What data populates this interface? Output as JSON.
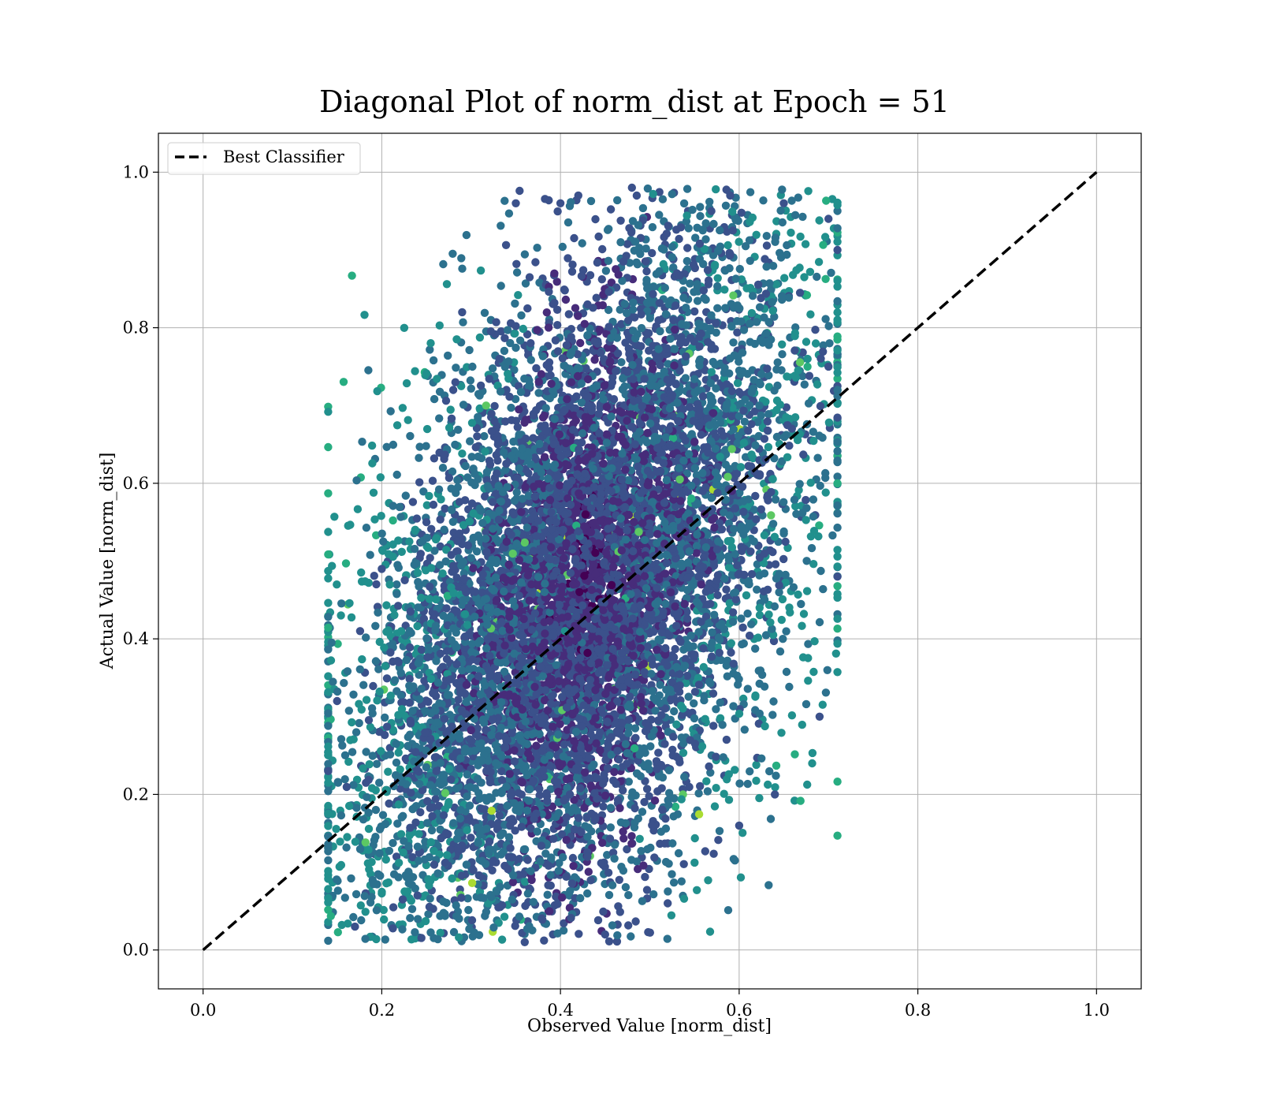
{
  "chart_data": {
    "type": "scatter",
    "title": "Diagonal Plot of norm_dist at Epoch = 51",
    "xlabel": "Observed Value [norm_dist]",
    "ylabel": "Actual Value [norm_dist]",
    "xlim": [
      -0.05,
      1.05
    ],
    "ylim": [
      -0.05,
      1.05
    ],
    "xticks": [
      "0.0",
      "0.2",
      "0.4",
      "0.6",
      "0.8",
      "1.0"
    ],
    "yticks": [
      "0.0",
      "0.2",
      "0.4",
      "0.6",
      "0.8",
      "1.0"
    ],
    "xtick_values": [
      0.0,
      0.2,
      0.4,
      0.6,
      0.8,
      1.0
    ],
    "ytick_values": [
      0.0,
      0.2,
      0.4,
      0.6,
      0.8,
      1.0
    ],
    "grid": true,
    "legend": {
      "position": "top-left",
      "entries": [
        "Best Classifier"
      ]
    },
    "reference_line": {
      "name": "Best Classifier",
      "x": [
        0.0,
        1.0
      ],
      "y": [
        0.0,
        1.0
      ],
      "style": "dashed",
      "color": "#000000"
    },
    "point_region": {
      "x_range": [
        0.14,
        0.71
      ],
      "y_range": [
        0.01,
        0.98
      ],
      "approx_point_count": 22000,
      "colormap": "viridis"
    },
    "sample_points": [
      [
        0.14,
        0.23
      ],
      [
        0.15,
        0.32
      ],
      [
        0.17,
        0.03
      ],
      [
        0.2,
        0.49
      ],
      [
        0.29,
        0.82
      ],
      [
        0.35,
        0.96
      ],
      [
        0.4,
        0.96
      ],
      [
        0.42,
        0.97
      ],
      [
        0.48,
        0.98
      ],
      [
        0.59,
        0.97
      ],
      [
        0.65,
        0.96
      ],
      [
        0.7,
        0.94
      ],
      [
        0.71,
        0.9
      ],
      [
        0.7,
        0.75
      ],
      [
        0.71,
        0.48
      ],
      [
        0.69,
        0.3
      ],
      [
        0.64,
        0.2
      ],
      [
        0.6,
        0.16
      ],
      [
        0.52,
        0.06
      ],
      [
        0.45,
        0.02
      ],
      [
        0.36,
        0.01
      ],
      [
        0.24,
        0.07
      ],
      [
        0.33,
        0.65
      ],
      [
        0.25,
        0.55
      ],
      [
        0.28,
        0.72
      ]
    ],
    "colors": {
      "viridis": [
        "#440154",
        "#472c7a",
        "#3b518b",
        "#2c718e",
        "#21908d",
        "#27ad81",
        "#5cc863",
        "#aadc32",
        "#fde725"
      ],
      "reference_line": "#000000",
      "grid": "#b0b0b0"
    }
  }
}
